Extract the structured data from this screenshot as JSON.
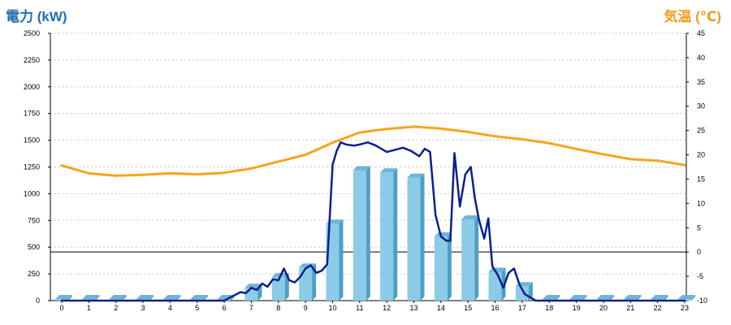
{
  "chart_data": {
    "type": "bar",
    "y_left_label": "電力 (kW)",
    "y_right_label": "気温 (℃)",
    "ylim_left": [
      0,
      2500
    ],
    "yticks_left": [
      "0",
      "250",
      "500",
      "750",
      "1000",
      "1250",
      "1500",
      "1750",
      "2000",
      "2250",
      "2500"
    ],
    "ylim_right": [
      -10,
      45
    ],
    "yticks_right": [
      "-10",
      "-5",
      "0",
      "5",
      "10",
      "15",
      "20",
      "25",
      "30",
      "35",
      "40",
      "45"
    ],
    "categories": [
      "0",
      "1",
      "2",
      "3",
      "4",
      "5",
      "6",
      "7",
      "8",
      "9",
      "10",
      "11",
      "12",
      "13",
      "14",
      "15",
      "16",
      "17",
      "18",
      "19",
      "20",
      "21",
      "22",
      "23"
    ],
    "grid": true,
    "reference_line_right_value": 0,
    "series": [
      {
        "name": "",
        "kind": "bar",
        "axis": "left",
        "color": "#8ccbe8",
        "values": [
          0,
          0,
          0,
          0,
          0,
          0,
          0,
          120,
          220,
          310,
          720,
          1220,
          1200,
          1150,
          600,
          760,
          270,
          135,
          0,
          0,
          0,
          0,
          0,
          0
        ]
      },
      {
        "name": "",
        "kind": "line",
        "axis": "left",
        "color": "#0a1f8f",
        "x": [
          0,
          1,
          2,
          3,
          4,
          5,
          6,
          6.3,
          6.6,
          6.8,
          7,
          7.2,
          7.4,
          7.6,
          7.8,
          8,
          8.2,
          8.4,
          8.6,
          8.8,
          9,
          9.2,
          9.4,
          9.6,
          9.8,
          10,
          10.15,
          10.3,
          10.5,
          10.8,
          11,
          11.3,
          11.6,
          11.8,
          12,
          12.3,
          12.6,
          12.9,
          13.2,
          13.4,
          13.6,
          13.8,
          14,
          14.2,
          14.35,
          14.5,
          14.7,
          14.9,
          15.1,
          15.25,
          15.4,
          15.6,
          15.75,
          15.9,
          16.1,
          16.3,
          16.5,
          16.7,
          16.9,
          17.1,
          17.5,
          18,
          19,
          20,
          21,
          22,
          23
        ],
        "values": [
          0,
          0,
          0,
          0,
          0,
          0,
          0,
          40,
          80,
          70,
          120,
          100,
          160,
          130,
          200,
          190,
          300,
          190,
          170,
          220,
          300,
          330,
          260,
          280,
          340,
          1270,
          1400,
          1480,
          1460,
          1450,
          1460,
          1480,
          1450,
          1420,
          1390,
          1410,
          1430,
          1400,
          1350,
          1420,
          1390,
          800,
          600,
          560,
          560,
          1380,
          880,
          1180,
          1250,
          960,
          760,
          580,
          770,
          320,
          240,
          120,
          260,
          300,
          150,
          60,
          0,
          0,
          0,
          0,
          0,
          0,
          0
        ]
      },
      {
        "name": "",
        "kind": "line",
        "axis": "right",
        "color": "#f6a41c",
        "x": [
          0,
          1,
          2,
          3,
          4,
          5,
          6,
          7,
          8,
          9,
          10,
          11,
          12,
          13,
          14,
          15,
          16,
          17,
          18,
          19,
          20,
          21,
          22,
          23
        ],
        "values": [
          17.8,
          16.2,
          15.7,
          15.9,
          16.2,
          16.0,
          16.3,
          17.2,
          18.6,
          20.0,
          22.5,
          24.6,
          25.3,
          25.8,
          25.4,
          24.7,
          23.8,
          23.2,
          22.4,
          21.2,
          20.1,
          19.1,
          18.8,
          17.9
        ]
      }
    ]
  }
}
